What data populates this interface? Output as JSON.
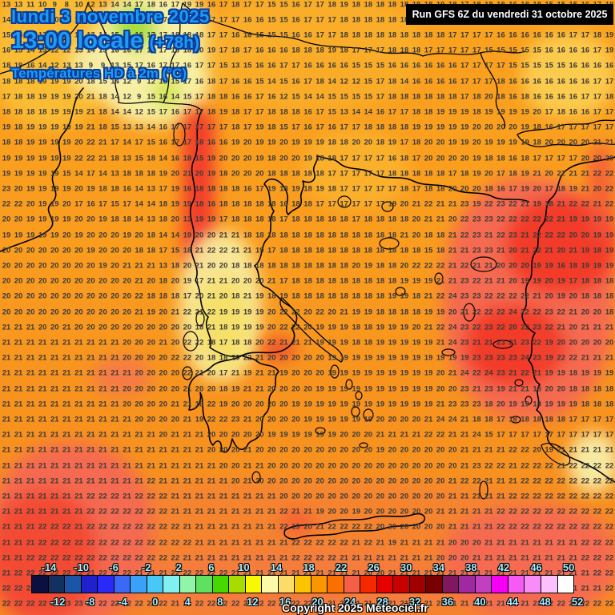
{
  "header": {
    "date_line": "lundi 3 novembre 2025",
    "time_line": "13:00 locale",
    "time_offset": "(+78h)",
    "subtitle": "Températures HD à 2m (°C)",
    "run_info": "Run GFS 6Z du vendredi 31 octobre 2025"
  },
  "footer": {
    "copyright": "Copyright 2025 Meteociel.fr"
  },
  "colors": {
    "title_fill": "#1C9CF2",
    "title_outline": "#0B3C9C",
    "legend_label": "#A8ECFC",
    "number_text": "#3a3a3a",
    "field_orange": "#FA9C1E",
    "field_salmon": "#F56A50",
    "field_red": "#F23B28",
    "field_amber": "#F9BC33",
    "field_pale_yellow": "#F7EFA3",
    "field_green": "#A6DC3F"
  },
  "legend": {
    "labels_top": [
      "-14",
      "-10",
      "-6",
      "-2",
      "2",
      "6",
      "10",
      "14",
      "18",
      "22",
      "26",
      "30",
      "34",
      "38",
      "42",
      "46",
      "50"
    ],
    "labels_bottom": [
      "-12",
      "-8",
      "-4",
      "0",
      "4",
      "8",
      "12",
      "16",
      "20",
      "24",
      "28",
      "32",
      "36",
      "40",
      "44",
      "48",
      "52"
    ],
    "box_colors": [
      "#0b1040",
      "#123060",
      "#1a55a8",
      "#2020cc",
      "#2a2af8",
      "#3a6af5",
      "#3aa0f8",
      "#48c8f5",
      "#80f0f0",
      "#90f5a8",
      "#60e060",
      "#46d800",
      "#a8dc00",
      "#f8f800",
      "#fafaa8",
      "#fadc68",
      "#fac400",
      "#fa9600",
      "#fa7000",
      "#f55f48",
      "#f52800",
      "#e60000",
      "#c80000",
      "#a00000",
      "#780000",
      "#801860",
      "#a028a0",
      "#c040c0",
      "#f500f5",
      "#f55af5",
      "#fa8cfa",
      "#fcc0fc",
      "#ffffff"
    ]
  },
  "map_grid": {
    "rows": [
      "13 13 11 10 9 8 10 12 13 14 14 17 18 16 17 19 19 16 17 18 17 17 15 15 16 17 17 18 19 18 18 18 18 18 18 18 19 18 17 18 18 18 16 18 18 15 15 15 16 17 18",
      "14 13 12 11 10 10 12 13 14 15 15 16 17 17 18 18 18 17 17 17 16 16 15 15 16 17 17 17 18 18 18 18 18 18 18 19 18 18 18 18 17 17 17 16 16 16 16 16 17 18 20",
      "15 14 13 12 11 11 12 13 14 15 16 16 17 17 18 18 18 17 17 16 16 15 15 15 16 16 17 17 18 18 18 18 18 18 18 18 18 17 17 17 17 16 16 16 16 16 16 17 17 18 19",
      "16 15 14 13 12 12 13 14 15 16 16 17 17 17 18 18 20 19 17 18 17 16 16 16 18 18 18 19 18 17 17 17 18 18 18 17 17 17 17 17 15 15 15 15 15 16 16 16 16 17 19",
      "18 19 16 14 12 13 13 9 9 13 15 17 16 17 17 16 17 17 15 13 15 16 16 17 17 16 16 16 16 15 15 15 16 16 16 16 16 16 17 17 17 17 15 15 15 15 15 16 16 16 16",
      "18 18 18 19 19 19 20 18 15 14 12 9 12 15 15 17 16 18 17 16 16 15 14 15 16 17 18 14 12 12 15 17 18 14 16 16 16 16 17 17 17 18 16 16 16 16 16 16 16 17 17",
      "17 18 18 19 19 19 20 21 18 14 12 9 15 16 14 15 17 18 18 16 16 17 16 12 15 14 14 15 15 15 15 17 18 18 18 18 18 18 17 18 20 18 16 18 16 16 16 16 17 17 18",
      "18 18 18 18 19 19 19 21 18 14 14 12 15 17 16 17 17 18 19 18 17 17 18 18 18 16 17 15 13 14 14 16 17 17 18 18 19 19 19 18 19 19 19 19 20 17 18 16 16 17 17",
      "19 18 19 19 19 19 19 21 18 15 13 13 14 16 17 17 17 17 17 18 17 19 18 15 17 16 17 16 17 17 18 18 18 18 19 19 19 19 19 20 20 20 20 19 18 16 17 17 17 17 17",
      "18 18 19 19 19 19 20 22 21 17 14 17 15 16 17 17 18 16 16 19 20 19 19 20 19 19 19 18 18 20 20 18 19 17 18 20 20 19 19 20 19 19 19 19 18 20 20 20 20 21 21",
      "19 19 19 19 19 19 22 22 21 18 13 15 18 14 16 18 15 19 20 20 20 19 18 20 20 19 18 18 17 17 17 17 16 18 17 20 20 20 20 19 18 18 16 18 17 17 17 17 20 20 20",
      "19 19 19 19 19 15 14 17 14 13 18 18 18 19 20 21 20 19 18 20 20 20 18 18 18 18 18 17 17 17 17 17 18 18 18 18 18 17 18 19 20 17 18 19 21 20 22 21 21 22 22",
      "23 20 19 19 19 19 20 19 18 18 16 14 13 17 19 16 18 18 18 18 16 17 19 18 19 18 19 18 17 17 17 17 17 18 17 18 18 20 20 20 18 16 17 19 20 17 18 19 21 20 22",
      "22 22 20 19 19 20 17 16 17 15 17 14 14 18 19 19 18 16 18 18 18 18 18 16 18 18 17 17 17 17 17 17 19 20 21 22 21 21 23 19 22 23 22 21 19 18 21 22 22 21 22",
      "20 20 19 19 19 19 20 20 19 18 18 14 13 18 20 13 19 19 17 18 18 18 18 17 18 18 18 18 18 17 18 18 18 18 20 21 21 20 22 23 23 22 22 22 22 22 21 19 19 19 19",
      "19 19 19 19 19 20 19 20 20 20 19 20 18 14 14 19 20 20 21 21 18 18 18 18 18 18 18 18 18 18 18 18 18 21 20 18 18 21 22 23 21 22 23 21 22 22 22 20 20 19 19",
      "20 20 20 20 20 20 20 19 20 20 20 18 18 17 15 18 21 22 22 21 21 19 17 18 18 18 18 18 18 18 18 18 18 18 18 15 18 21 21 23 23 21 20 21 22 21 20 21 19 18 19",
      "20 20 20 20 20 20 20 20 19 20 21 21 21 13 18 20 21 20 20 18 18 18 18 18 18 18 18 18 18 20 19 18 18 20 22 22 22 21 22 21 21 20 20 20 19 19 16 18 19 19 19",
      "20 20 20 20 20 20 20 20 20 20 20 21 20 18 20 19 17 21 21 20 20 20 21 17 18 18 18 18 18 18 18 18 18 19 19 19 21 21 23 22 21 21 20 19 19 20 19 17 18 18 18",
      "20 20 20 20 20 20 20 20 20 20 20 22 18 18 18 17 20 21 20 18 21 19 18 19 18 18 18 18 18 18 18 18 19 19 18 21 22 24 23 23 22 22 22 22 21 20 19 20 18 18 18",
      "20 20 20 20 20 20 20 20 20 20 20 21 19 20 21 22 21 22 19 19 19 19 20 22 22 20 22 20 21 19 19 18 18 18 18 19 19 20 21 22 22 22 24 22 22 23 22 21 20 20 18",
      "21 21 21 20 20 21 20 20 20 20 20 20 20 20 20 20 18 21 18 19 19 19 20 22 22 20 19 19 19 18 18 19 19 19 20 21 22 24 23 22 23 22 20 22 23 22 21 20 21 21 21",
      "21 21 21 21 21 21 21 21 21 21 20 20 20 21 20 22 22 18 17 18 18 20 22 21 21 21 19 19 19 18 18 19 19 19 19 19 21 24 23 21 21 23 21 23 22 19 20 20 20 20 20",
      "21 21 21 21 21 21 21 21 21 21 20 20 20 20 22 22 20 18 18 20 22 21 20 20 20 20 20 19 19 19 19 19 19 19 19 19 19 19 19 23 23 23 23 24 23 19 22 22 21 21 21",
      "21 21 21 21 21 21 21 21 21 21 21 20 20 20 20 22 21 20 17 21 19 21 21 19 20 20 20 19 19 19 19 19 19 19 19 19 20 21 24 22 24 23 21 22 21 19 19 18 19 19 19",
      "21 21 21 21 21 21 21 21 21 21 20 20 20 20 20 21 20 20 18 19 21 21 20 20 20 20 19 19 19 19 19 19 19 19 19 19 20 20 23 21 23 19 21 21 18 20 20 18 18 18 18",
      "21 21 21 21 21 21 21 21 21 21 20 20 20 20 21 21 18 22 19 20 20 20 20 20 19 19 19 19 19 19 19 19 19 19 19 19 21 23 23 23 18 20 19 19 18 19 19 19 18 18 18",
      "21 21 21 21 21 21 21 21 21 21 21 20 20 20 20 21 19 22 22 23 21 20 20 20 20 19 19 19 19 19 19 20 20 20 20 21 24 24 21 18 18 17 18 18 18 18 18 17 17 17 17",
      "21 21 21 21 21 21 21 21 21 21 21 21 21 20 21 21 21 20 20 20 20 20 19 19 19 19 19 19 20 20 20 21 21 21 21 22 22 21 21 24 15 17 17 17 17 17 17 17 17 17 17",
      "21 21 21 21 21 21 21 21 21 21 21 21 21 21 21 21 21 20 20 20 21 20 20 20 20 20 20 20 20 20 20 19 20 20 20 20 20 20 21 21 21 21 22 22 20 19 21 21 21 21 21",
      "21 21 21 21 21 21 21 21 21 21 21 21 21 21 21 21 21 21 20 20 21 21 20 20 20 20 20 20 20 20 20 20 20 20 20 20 20 20 21 23 22 22 21 22 22 22 21 22 22 22 22",
      "21 21 21 21 21 21 21 21 21 21 21 21 22 21 21 21 21 21 21 20 21 20 20 20 20 20 20 20 20 20 20 20 20 20 20 20 20 21 22 22 21 21 21 22 22 22 22 22 22 22 22",
      "21 21 21 21 21 21 21 22 22 22 21 22 22 22 21 21 21 21 21 21 21 21 21 20 20 20 20 20 20 20 20 20 20 20 20 20 20 21 21 21 21 21 22 22 22 22 22 22 22 22 22",
      "21 21 21 21 21 21 21 22 22 22 22 22 22 22 21 21 21 21 21 21 21 21 21 22 21 21 19 20 20 19 20 20 20 20 20 20 21 21 21 21 21 22 22 22 22 22 22 22 22 22 22",
      "21 21 21 22 22 22 21 22 22 22 22 22 22 22 22 21 21 21 21 21 21 21 21 22 19 20 21 22 22 22 22 20 20 20 20 20 20 21 21 21 21 22 22 22 22 22 22 22 22 22 22",
      "21 21 21 22 22 22 22 22 22 22 22 22 22 22 22 22 21 21 21 21 21 21 21 21 22 22 22 22 22 21 22 21 19 21 21 21 21 20 20 20 21 21 21 21 21 21 21 21 22 22 22",
      "21 21 22 22 22 22 22 22 22 22 22 22 22 22 22 21 21 21 21 21 21 21 21 21 22 22 22 22 21 21 21 21 21 21 21 21 20 20 20 21 21 21 21 21 21 21 21 21 22 22 22",
      "21 22 22 22 22 22 22 21 22 22 22 21 21 21 22 22 22 22 22 21 21 21 21 21 21 21 21 21 21 21 20 20 21 21 21 21 21 21 21 21 21 21 21 21 21 21 21 21 21 22 22",
      "22 22 22 22 22 22 22 22 22 22 22 22 21 21 22 22 22 22 22 22 21 21 21 21 21 21 21 21 21 21 21 21 21 21 21 21 21 21 21 21 21 21 21 21 21 21 21 21 21 21 22",
      "22 22 22 22 22 23 23 23 22 22 22 22 22 22 21 21 22 22 22 22 22 22 22 22 22 22 21 21 21 21 21 21 21 21 21 21 21 21 21 21 21 21 21 21 21 22 22 22 22 22 22"
    ]
  }
}
